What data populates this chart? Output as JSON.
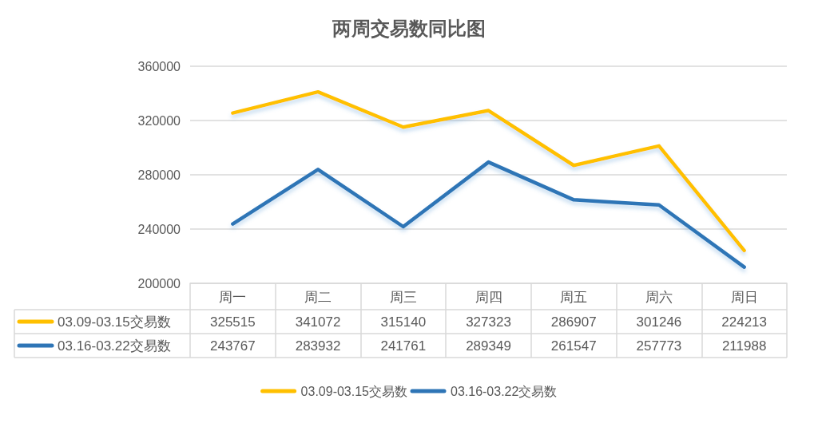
{
  "chart_data": {
    "type": "line",
    "title": "两周交易数同比图",
    "categories": [
      "周一",
      "周二",
      "周三",
      "周四",
      "周五",
      "周六",
      "周日"
    ],
    "series": [
      {
        "name": "03.09-03.15交易数",
        "color": "#ffc000",
        "values": [
          325515,
          341072,
          315140,
          327323,
          286907,
          301246,
          224213
        ]
      },
      {
        "name": "03.16-03.22交易数",
        "color": "#2e75b6",
        "values": [
          243767,
          283932,
          241761,
          289349,
          261547,
          257773,
          211988
        ]
      }
    ],
    "ylim": [
      200000,
      360000
    ],
    "yticks": [
      200000,
      240000,
      280000,
      320000,
      360000
    ],
    "grid": "y",
    "legend": "bottom",
    "marker": "none",
    "line_style": "solid",
    "data_labels": true
  }
}
